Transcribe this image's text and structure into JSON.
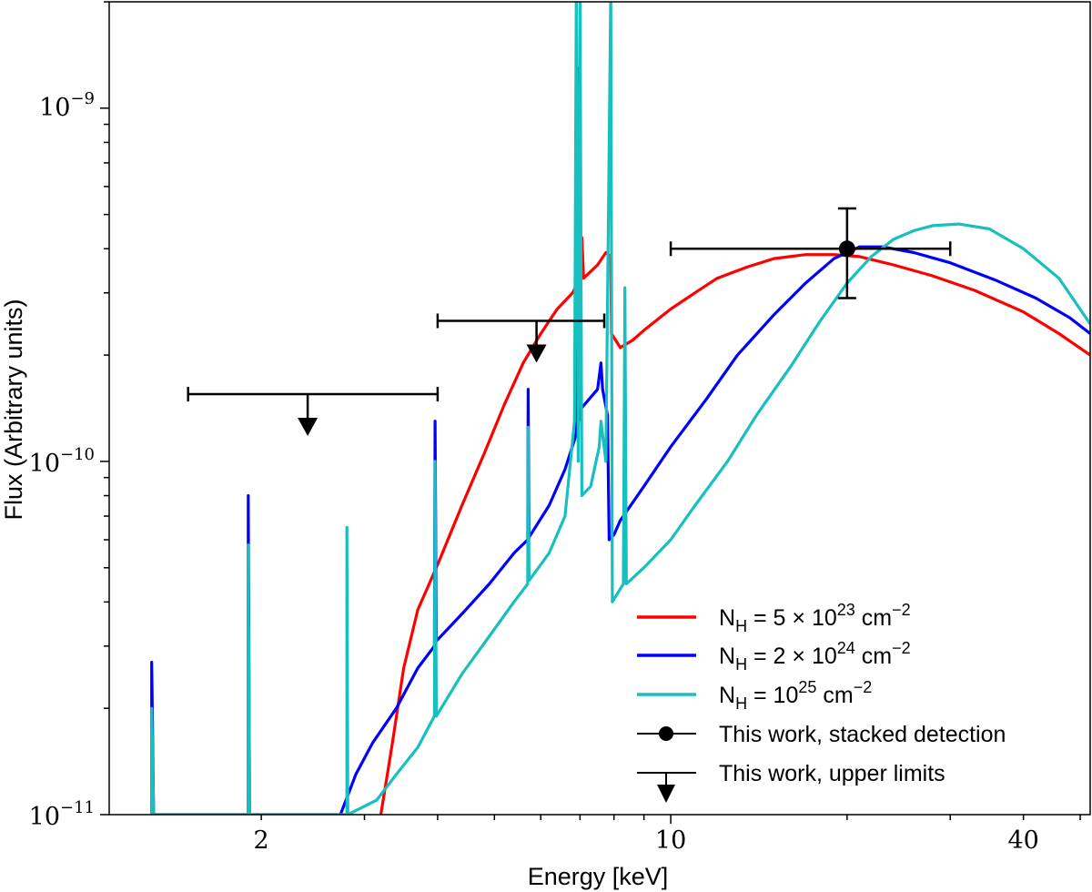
{
  "chart_data": {
    "type": "line",
    "xscale": "log",
    "yscale": "log",
    "xlim": [
      1.1,
      52
    ],
    "ylim": [
      1e-11,
      2e-09
    ],
    "xlabel": "Energy [keV]",
    "ylabel": "Flux (Arbitrary units)",
    "xticks": [
      {
        "value": 2,
        "label": "2"
      },
      {
        "value": 10,
        "label": "10"
      },
      {
        "value": 40,
        "label": "40"
      }
    ],
    "yticks": [
      {
        "value": 1e-11,
        "base": "10",
        "exp": "−11"
      },
      {
        "value": 1e-10,
        "base": "10",
        "exp": "−10"
      },
      {
        "value": 1e-09,
        "base": "10",
        "exp": "−9"
      }
    ],
    "series": [
      {
        "name": "NH = 5e23",
        "color": "#ff0000",
        "legend": {
          "prefix": "N",
          "sub": "H",
          "mid": " = 5 × 10",
          "sup": "23",
          "unit": " cm",
          "unitsup": "−2"
        },
        "points": [
          [
            3.2,
            1e-11
          ],
          [
            3.35,
            1.6e-11
          ],
          [
            3.5,
            2.6e-11
          ],
          [
            3.7,
            3.8e-11
          ],
          [
            4.0,
            5.1e-11
          ],
          [
            4.4,
            7.5e-11
          ],
          [
            4.8,
            1.05e-10
          ],
          [
            5.2,
            1.45e-10
          ],
          [
            5.6,
            1.9e-10
          ],
          [
            6.0,
            2.3e-10
          ],
          [
            6.4,
            2.7e-10
          ],
          [
            6.8,
            3e-10
          ],
          [
            7.0,
            3.3e-10
          ],
          [
            7.05,
            4.3e-10
          ],
          [
            7.1,
            3.3e-10
          ],
          [
            7.5,
            3.6e-10
          ],
          [
            7.75,
            3.9e-10
          ],
          [
            7.9,
            3.8e-10
          ],
          [
            7.92,
            2.3e-10
          ],
          [
            8.2,
            2.1e-10
          ],
          [
            8.6,
            2.2e-10
          ],
          [
            9.0,
            2.35e-10
          ],
          [
            10.0,
            2.7e-10
          ],
          [
            11.0,
            3e-10
          ],
          [
            12.0,
            3.3e-10
          ],
          [
            13.5,
            3.55e-10
          ],
          [
            15.0,
            3.75e-10
          ],
          [
            17.0,
            3.85e-10
          ],
          [
            19.0,
            3.85e-10
          ],
          [
            21.0,
            3.8e-10
          ],
          [
            24.0,
            3.6e-10
          ],
          [
            28.0,
            3.35e-10
          ],
          [
            33.0,
            3.05e-10
          ],
          [
            40.0,
            2.65e-10
          ],
          [
            46.0,
            2.3e-10
          ],
          [
            52.0,
            2e-10
          ]
        ]
      },
      {
        "name": "NH = 2e24",
        "color": "#0000ff",
        "legend": {
          "prefix": "N",
          "sub": "H",
          "mid": " = 2 × 10",
          "sup": "24",
          "unit": " cm",
          "unitsup": "−2"
        },
        "points": [
          [
            1.3,
            1e-11
          ],
          [
            1.3,
            2.7e-11
          ],
          [
            1.31,
            1e-11
          ],
          [
            1.9,
            1e-11
          ],
          [
            1.9,
            8e-11
          ],
          [
            1.91,
            1e-11
          ],
          [
            2.73,
            1e-11
          ],
          [
            2.9,
            1.3e-11
          ],
          [
            3.1,
            1.6e-11
          ],
          [
            3.4,
            2e-11
          ],
          [
            3.7,
            2.6e-11
          ],
          [
            3.95,
            3e-11
          ],
          [
            3.96,
            1.3e-10
          ],
          [
            3.98,
            3.1e-11
          ],
          [
            4.4,
            3.7e-11
          ],
          [
            4.9,
            4.5e-11
          ],
          [
            5.4,
            5.5e-11
          ],
          [
            5.7,
            6e-11
          ],
          [
            5.71,
            1.6e-10
          ],
          [
            5.73,
            6.1e-11
          ],
          [
            6.2,
            7.5e-11
          ],
          [
            6.6,
            9.5e-11
          ],
          [
            6.85,
            1.15e-10
          ],
          [
            6.9,
            1.2e-10
          ],
          [
            6.92,
            1.3e-09
          ],
          [
            6.96,
            1.3e-10
          ],
          [
            7.0,
            1.4e-10
          ],
          [
            7.5,
            1.6e-10
          ],
          [
            7.6,
            1.9e-10
          ],
          [
            7.65,
            1.6e-10
          ],
          [
            7.8,
            1.35e-10
          ],
          [
            7.85,
            6e-11
          ],
          [
            8.0,
            6.2e-11
          ],
          [
            8.2,
            6.8e-11
          ],
          [
            9.0,
            8.5e-11
          ],
          [
            10.0,
            1.1e-10
          ],
          [
            11.5,
            1.5e-10
          ],
          [
            13.0,
            2e-10
          ],
          [
            15.0,
            2.6e-10
          ],
          [
            17.0,
            3.2e-10
          ],
          [
            19.0,
            3.75e-10
          ],
          [
            21.0,
            4.05e-10
          ],
          [
            23.0,
            4.05e-10
          ],
          [
            26.0,
            3.9e-10
          ],
          [
            30.0,
            3.65e-10
          ],
          [
            36.0,
            3.25e-10
          ],
          [
            42.0,
            2.9e-10
          ],
          [
            48.0,
            2.55e-10
          ],
          [
            52.0,
            2.3e-10
          ]
        ]
      },
      {
        "name": "NH = 1e25",
        "color": "#17bfbf",
        "legend": {
          "prefix": "N",
          "sub": "H",
          "mid": " = 10",
          "sup": "25",
          "unit": " cm",
          "unitsup": "−2"
        },
        "points": [
          [
            1.3,
            1e-11
          ],
          [
            1.3,
            2e-11
          ],
          [
            1.31,
            1e-11
          ],
          [
            1.9,
            1e-11
          ],
          [
            1.9,
            5.8e-11
          ],
          [
            1.91,
            1e-11
          ],
          [
            2.8,
            1e-11
          ],
          [
            2.8,
            6.5e-11
          ],
          [
            2.81,
            1e-11
          ],
          [
            3.15,
            1.1e-11
          ],
          [
            3.4,
            1.3e-11
          ],
          [
            3.7,
            1.55e-11
          ],
          [
            3.95,
            1.9e-11
          ],
          [
            3.96,
            1e-10
          ],
          [
            3.98,
            1.9e-11
          ],
          [
            4.4,
            2.5e-11
          ],
          [
            4.9,
            3.2e-11
          ],
          [
            5.4,
            4e-11
          ],
          [
            5.7,
            4.5e-11
          ],
          [
            5.71,
            1.25e-10
          ],
          [
            5.73,
            4.6e-11
          ],
          [
            6.2,
            5.5e-11
          ],
          [
            6.6,
            7e-11
          ],
          [
            6.85,
            1.3e-10
          ],
          [
            6.9,
            2.2e-09
          ],
          [
            6.95,
            1e-10
          ],
          [
            7.0,
            2.2e-09
          ],
          [
            7.05,
            8e-11
          ],
          [
            7.3,
            8.5e-11
          ],
          [
            7.55,
            1.1e-10
          ],
          [
            7.6,
            1.3e-10
          ],
          [
            7.75,
            1e-10
          ],
          [
            7.9,
            2.2e-09
          ],
          [
            7.95,
            4e-11
          ],
          [
            8.3,
            4.5e-11
          ],
          [
            8.35,
            3.1e-10
          ],
          [
            8.4,
            4.5e-11
          ],
          [
            9.0,
            5e-11
          ],
          [
            10.0,
            6e-11
          ],
          [
            11.0,
            7.5e-11
          ],
          [
            12.5,
            1e-10
          ],
          [
            14.0,
            1.35e-10
          ],
          [
            16.0,
            1.85e-10
          ],
          [
            18.0,
            2.5e-10
          ],
          [
            20.0,
            3.2e-10
          ],
          [
            22.0,
            3.8e-10
          ],
          [
            24.0,
            4.25e-10
          ],
          [
            26.0,
            4.5e-10
          ],
          [
            28.0,
            4.65e-10
          ],
          [
            31.0,
            4.7e-10
          ],
          [
            35.0,
            4.55e-10
          ],
          [
            40.0,
            4e-10
          ],
          [
            46.0,
            3.3e-10
          ],
          [
            52.0,
            2.45e-10
          ]
        ]
      }
    ],
    "detection": {
      "label": "This work, stacked detection",
      "x": 20,
      "xerr": [
        10,
        30
      ],
      "y": 4e-10,
      "yerr": [
        2.9e-10,
        5.2e-10
      ]
    },
    "upper_limits": {
      "label": "This work, upper limits",
      "points": [
        {
          "x1": 1.5,
          "x2": 4,
          "y": 1.55e-10,
          "x_arrow": 2.4
        },
        {
          "x1": 4,
          "x2": 7.7,
          "y": 2.5e-10,
          "x_arrow": 5.9
        }
      ]
    },
    "legend_position": "lower-right"
  }
}
